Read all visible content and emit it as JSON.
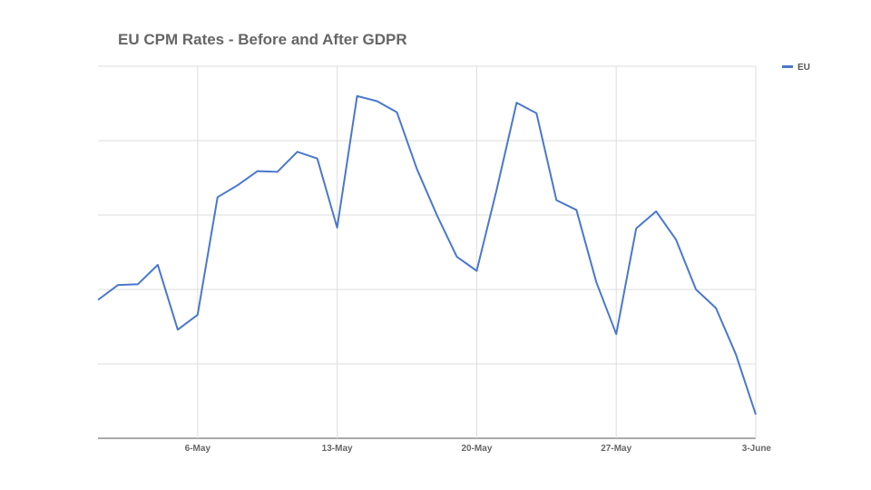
{
  "chart_data": {
    "type": "line",
    "title": "EU CPM Rates - Before and After GDPR",
    "xlabel": "",
    "ylabel": "",
    "x_ticks": [
      "6-May",
      "13-May",
      "20-May",
      "27-May",
      "3-June"
    ],
    "x": [
      "1-May",
      "2-May",
      "3-May",
      "4-May",
      "5-May",
      "6-May",
      "7-May",
      "8-May",
      "9-May",
      "10-May",
      "11-May",
      "12-May",
      "13-May",
      "14-May",
      "15-May",
      "16-May",
      "17-May",
      "18-May",
      "19-May",
      "20-May",
      "21-May",
      "22-May",
      "23-May",
      "24-May",
      "25-May",
      "26-May",
      "27-May",
      "28-May",
      "29-May",
      "30-May",
      "31-May",
      "1-June",
      "2-June",
      "3-June"
    ],
    "series": [
      {
        "name": "EU",
        "color": "#4a78cc",
        "values": [
          1.86,
          2.06,
          2.07,
          2.33,
          1.46,
          1.66,
          3.24,
          3.4,
          3.59,
          3.58,
          3.85,
          3.76,
          2.83,
          4.6,
          4.53,
          4.38,
          3.62,
          3.0,
          2.44,
          2.25,
          3.34,
          4.51,
          4.37,
          3.2,
          3.07,
          2.1,
          1.4,
          2.82,
          3.05,
          2.67,
          2.0,
          1.75,
          1.13,
          0.32
        ]
      }
    ],
    "ylim": [
      0,
      5
    ],
    "y_gridlines": [
      0,
      1,
      2,
      3,
      4,
      5
    ],
    "y_tick_labels_visible": false,
    "grid": true,
    "legend_position": "top-right"
  }
}
